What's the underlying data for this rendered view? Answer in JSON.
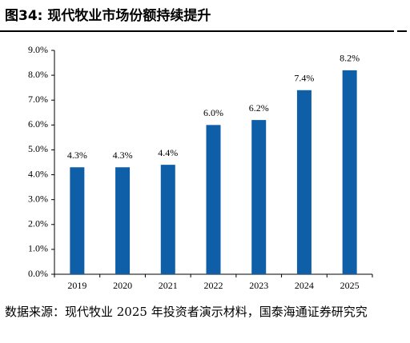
{
  "chart_data": {
    "type": "bar",
    "title": "图34:  现代牧业市场份额持续提升",
    "categories": [
      "2019",
      "2020",
      "2021",
      "2022",
      "2023",
      "2024",
      "2025"
    ],
    "values": [
      4.3,
      4.3,
      4.4,
      6.0,
      6.2,
      7.4,
      8.2
    ],
    "value_labels": [
      "4.3%",
      "4.3%",
      "4.4%",
      "6.0%",
      "6.2%",
      "7.4%",
      "8.2%"
    ],
    "color": "#0f5ea8",
    "ylim": [
      0,
      9
    ],
    "yticks": [
      {
        "value": 0,
        "label": "0.0%"
      },
      {
        "value": 1,
        "label": "1.0%"
      },
      {
        "value": 2,
        "label": "2.0%"
      },
      {
        "value": 3,
        "label": "3.0%"
      },
      {
        "value": 4,
        "label": "4.0%"
      },
      {
        "value": 5,
        "label": "5.0%"
      },
      {
        "value": 6,
        "label": "6.0%"
      },
      {
        "value": 7,
        "label": "7.0%"
      },
      {
        "value": 8,
        "label": "8.0%"
      },
      {
        "value": 9,
        "label": "9.0%"
      }
    ],
    "source": "数据来源：现代牧业 2025 年投资者演示材料，国泰海通证券研究究"
  }
}
